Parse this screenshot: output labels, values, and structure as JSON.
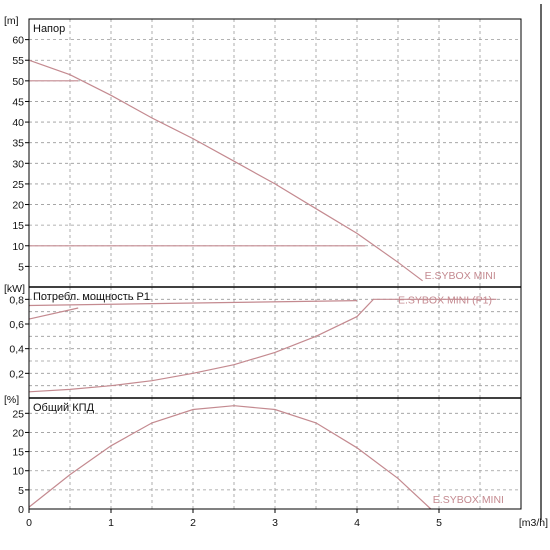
{
  "colors": {
    "curve": "#c48a90",
    "grid": "#9a9a9a",
    "axis": "#000000"
  },
  "chart_data": {
    "type": "line",
    "x_axis": {
      "unit_label": "[m3/h]",
      "range": [
        0,
        6
      ],
      "ticks": [
        0,
        1,
        2,
        3,
        4,
        5
      ],
      "tick_labels": [
        "0",
        "1",
        "2",
        "3",
        "4",
        "5"
      ],
      "grid": [
        0.5,
        1,
        1.5,
        2,
        2.5,
        3,
        3.5,
        4,
        4.5,
        5,
        5.5
      ]
    },
    "panels": [
      {
        "id": "head",
        "title": "Напор",
        "unit_label": "[m]",
        "y_range": [
          0,
          65
        ],
        "ticks": [
          5,
          10,
          15,
          20,
          25,
          30,
          35,
          40,
          45,
          50,
          55,
          60
        ],
        "tick_labels": [
          "5",
          "10",
          "15",
          "20",
          "25",
          "30",
          "35",
          "40",
          "45",
          "50",
          "55",
          "60"
        ],
        "grid": [
          5,
          10,
          15,
          20,
          25,
          30,
          35,
          40,
          45,
          50,
          55,
          60
        ],
        "series": [
          {
            "name": "E.SYBOX MINI",
            "points": [
              [
                0,
                55
              ],
              [
                0.5,
                51.5
              ],
              [
                1,
                46.5
              ],
              [
                1.5,
                41
              ],
              [
                2,
                36
              ],
              [
                2.5,
                30.5
              ],
              [
                3,
                25
              ],
              [
                3.5,
                19
              ],
              [
                4,
                13
              ],
              [
                4.5,
                6
              ],
              [
                4.8,
                1.5
              ]
            ]
          },
          {
            "points": [
              [
                0,
                50
              ],
              [
                0.6,
                50
              ]
            ]
          },
          {
            "points": [
              [
                0,
                10
              ],
              [
                4.1,
                10
              ]
            ]
          }
        ]
      },
      {
        "id": "power",
        "title": "Потребл. мощность P1",
        "unit_label": "[kW]",
        "y_range": [
          0,
          0.9
        ],
        "ticks": [
          0.2,
          0.4,
          0.6,
          0.8
        ],
        "tick_labels": [
          "0,2",
          "0,4",
          "0,6",
          "0,8"
        ],
        "grid": [
          0.1,
          0.2,
          0.3,
          0.4,
          0.5,
          0.6,
          0.7,
          0.8
        ],
        "series": [
          {
            "name": "E.SYBOX MINI (P1)",
            "points": [
              [
                0,
                0.05
              ],
              [
                0.5,
                0.07
              ],
              [
                1,
                0.1
              ],
              [
                1.5,
                0.14
              ],
              [
                2,
                0.2
              ],
              [
                2.5,
                0.27
              ],
              [
                3,
                0.37
              ],
              [
                3.5,
                0.5
              ],
              [
                4,
                0.66
              ],
              [
                4.2,
                0.8
              ],
              [
                5.7,
                0.8
              ]
            ]
          },
          {
            "points": [
              [
                0,
                0.64
              ],
              [
                0.6,
                0.73
              ]
            ]
          },
          {
            "points": [
              [
                0,
                0.75
              ],
              [
                4.0,
                0.79
              ]
            ]
          }
        ]
      },
      {
        "id": "efficiency",
        "title": "Общий КПД",
        "unit_label": "[%]",
        "y_range": [
          0,
          29
        ],
        "ticks": [
          5,
          10,
          15,
          20,
          25
        ],
        "tick_labels": [
          "5",
          "10",
          "15",
          "20",
          "25"
        ],
        "grid": [
          5,
          10,
          15,
          20,
          25
        ],
        "series": [
          {
            "name": "E.SYBOX MINI",
            "points": [
              [
                0,
                0.5
              ],
              [
                0.5,
                9
              ],
              [
                1,
                16.5
              ],
              [
                1.5,
                22.5
              ],
              [
                2,
                26
              ],
              [
                2.5,
                27
              ],
              [
                3,
                26
              ],
              [
                3.5,
                22.5
              ],
              [
                4,
                16
              ],
              [
                4.5,
                8
              ],
              [
                4.9,
                0
              ]
            ]
          }
        ]
      }
    ]
  }
}
